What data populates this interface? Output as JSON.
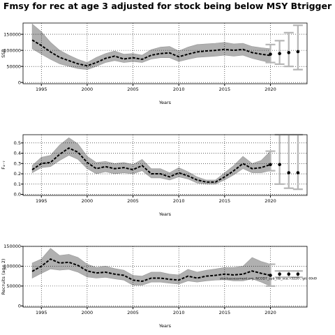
{
  "title": "Fmsy for rec at age 3 adjusted for stock being below MSY Btrigger",
  "watermark": "stockassessment.org, NCOD7_spb_ttb_sca, r3220 , git: 69d9",
  "chart_data": [
    {
      "type": "line",
      "panel": "ssb",
      "ylabel": "SSB",
      "xlabel": "Years",
      "xlim": [
        1993,
        2024
      ],
      "ylim": [
        -4000,
        185000
      ],
      "xticks": [
        1995,
        2000,
        2005,
        2010,
        2015,
        2020
      ],
      "yticks": [
        0,
        50000,
        100000,
        150000
      ],
      "ytick_labels": [
        "0",
        "50000",
        "100000",
        "150000"
      ],
      "grid": "dotted at major ticks",
      "series": [
        {
          "x": [
            1994,
            1995,
            1996,
            1997,
            1998,
            1999,
            2000,
            2001,
            2002,
            2003,
            2004,
            2005,
            2006,
            2007,
            2008,
            2009,
            2010,
            2011,
            2012,
            2013,
            2014,
            2015,
            2016,
            2017,
            2018,
            2019,
            2020
          ],
          "values": [
            132000,
            115000,
            95000,
            78000,
            68000,
            58000,
            52000,
            62000,
            75000,
            82000,
            73000,
            77000,
            72000,
            85000,
            90000,
            92000,
            80000,
            88000,
            95000,
            98000,
            100000,
            103000,
            100000,
            103000,
            93000,
            88000,
            84000
          ],
          "lower": [
            105000,
            88000,
            72000,
            58000,
            50000,
            43000,
            40000,
            50000,
            62000,
            68000,
            62000,
            65000,
            62000,
            73000,
            77000,
            77000,
            65000,
            72000,
            78000,
            80000,
            82000,
            85000,
            82000,
            85000,
            75000,
            68000,
            62000
          ],
          "upper": [
            182000,
            158000,
            125000,
            100000,
            85000,
            72000,
            62000,
            78000,
            90000,
            98000,
            88000,
            90000,
            85000,
            102000,
            110000,
            112000,
            98000,
            110000,
            118000,
            120000,
            122000,
            125000,
            120000,
            122000,
            112000,
            108000,
            105000
          ]
        }
      ],
      "forecast": {
        "x": [
          2020,
          2021,
          2022,
          2023
        ],
        "values": [
          88000,
          90000,
          93000,
          96000
        ],
        "lower": [
          62000,
          57000,
          50000,
          40000
        ],
        "upper": [
          118000,
          130000,
          155000,
          178000
        ]
      }
    },
    {
      "type": "line",
      "panel": "fbar",
      "ylabel": "F₄₋₇",
      "xlabel": "Years",
      "xlim": [
        1993,
        2024
      ],
      "ylim": [
        -0.01,
        0.58
      ],
      "xticks": [
        1995,
        2000,
        2005,
        2010,
        2015,
        2020
      ],
      "yticks": [
        0,
        0.1,
        0.2,
        0.3,
        0.4,
        0.5
      ],
      "ytick_labels": [
        "0.0",
        "0.1",
        "0.2",
        "0.3",
        "0.4",
        "0.5"
      ],
      "grid": "dotted at major ticks",
      "series": [
        {
          "x": [
            1994,
            1995,
            1996,
            1997,
            1998,
            1999,
            2000,
            2001,
            2002,
            2003,
            2004,
            2005,
            2006,
            2007,
            2008,
            2009,
            2010,
            2011,
            2012,
            2013,
            2014,
            2015,
            2016,
            2017,
            2018,
            2019,
            2020
          ],
          "values": [
            0.24,
            0.3,
            0.31,
            0.39,
            0.45,
            0.41,
            0.31,
            0.25,
            0.27,
            0.25,
            0.26,
            0.24,
            0.28,
            0.2,
            0.2,
            0.17,
            0.21,
            0.18,
            0.14,
            0.12,
            0.12,
            0.17,
            0.23,
            0.3,
            0.25,
            0.26,
            0.29
          ],
          "lower": [
            0.21,
            0.26,
            0.27,
            0.33,
            0.38,
            0.34,
            0.25,
            0.2,
            0.22,
            0.2,
            0.21,
            0.2,
            0.23,
            0.16,
            0.16,
            0.14,
            0.17,
            0.15,
            0.11,
            0.1,
            0.1,
            0.14,
            0.19,
            0.25,
            0.21,
            0.21,
            0.23
          ],
          "upper": [
            0.28,
            0.36,
            0.38,
            0.48,
            0.55,
            0.49,
            0.37,
            0.31,
            0.32,
            0.3,
            0.31,
            0.29,
            0.34,
            0.25,
            0.25,
            0.21,
            0.26,
            0.22,
            0.17,
            0.14,
            0.14,
            0.21,
            0.28,
            0.37,
            0.3,
            0.33,
            0.42
          ]
        }
      ],
      "forecast": {
        "x": [
          2020,
          2021,
          2022,
          2023
        ],
        "values": [
          0.29,
          0.29,
          0.21,
          0.21
        ],
        "lower": [
          0.23,
          0.1,
          0.06,
          0.05
        ],
        "upper": [
          0.42,
          0.58,
          0.58,
          0.58
        ]
      }
    },
    {
      "type": "line",
      "panel": "recruits",
      "ylabel": "Recruits (age 2)",
      "xlabel": "Years",
      "xlim": [
        1993,
        2024
      ],
      "ylim": [
        -3000,
        150000
      ],
      "xticks": [
        1995,
        2000,
        2005,
        2010,
        2015,
        2020
      ],
      "yticks": [
        0,
        50000,
        100000,
        150000
      ],
      "ytick_labels": [
        "0",
        "50000",
        "100000",
        "150000"
      ],
      "grid": "dotted at major ticks",
      "series": [
        {
          "x": [
            1994,
            1995,
            1996,
            1997,
            1998,
            1999,
            2000,
            2001,
            2002,
            2003,
            2004,
            2005,
            2006,
            2007,
            2008,
            2009,
            2010,
            2011,
            2012,
            2013,
            2014,
            2015,
            2016,
            2017,
            2018,
            2019,
            2020
          ],
          "values": [
            87000,
            100000,
            118000,
            108000,
            110000,
            102000,
            88000,
            83000,
            85000,
            80000,
            77000,
            65000,
            62000,
            70000,
            70000,
            67000,
            65000,
            75000,
            70000,
            75000,
            77000,
            80000,
            78000,
            80000,
            88000,
            82000,
            77000
          ],
          "lower": [
            70000,
            82000,
            93000,
            90000,
            92000,
            85000,
            73000,
            70000,
            72000,
            68000,
            65000,
            52000,
            52000,
            60000,
            60000,
            57000,
            55000,
            63000,
            60000,
            63000,
            65000,
            66000,
            63000,
            63000,
            68000,
            60000,
            50000
          ],
          "upper": [
            108000,
            118000,
            145000,
            127000,
            130000,
            122000,
            105000,
            97000,
            100000,
            94000,
            90000,
            77000,
            75000,
            85000,
            85000,
            80000,
            78000,
            92000,
            85000,
            90000,
            93000,
            97000,
            97000,
            100000,
            122000,
            112000,
            105000
          ]
        }
      ],
      "forecast": {
        "x": [
          2020,
          2021,
          2022,
          2023
        ],
        "values": [
          77000,
          80000,
          80000,
          80000
        ],
        "lower": [
          50000,
          72000,
          72000,
          72000
        ],
        "upper": [
          105000,
          88000,
          88000,
          88000
        ]
      }
    }
  ]
}
